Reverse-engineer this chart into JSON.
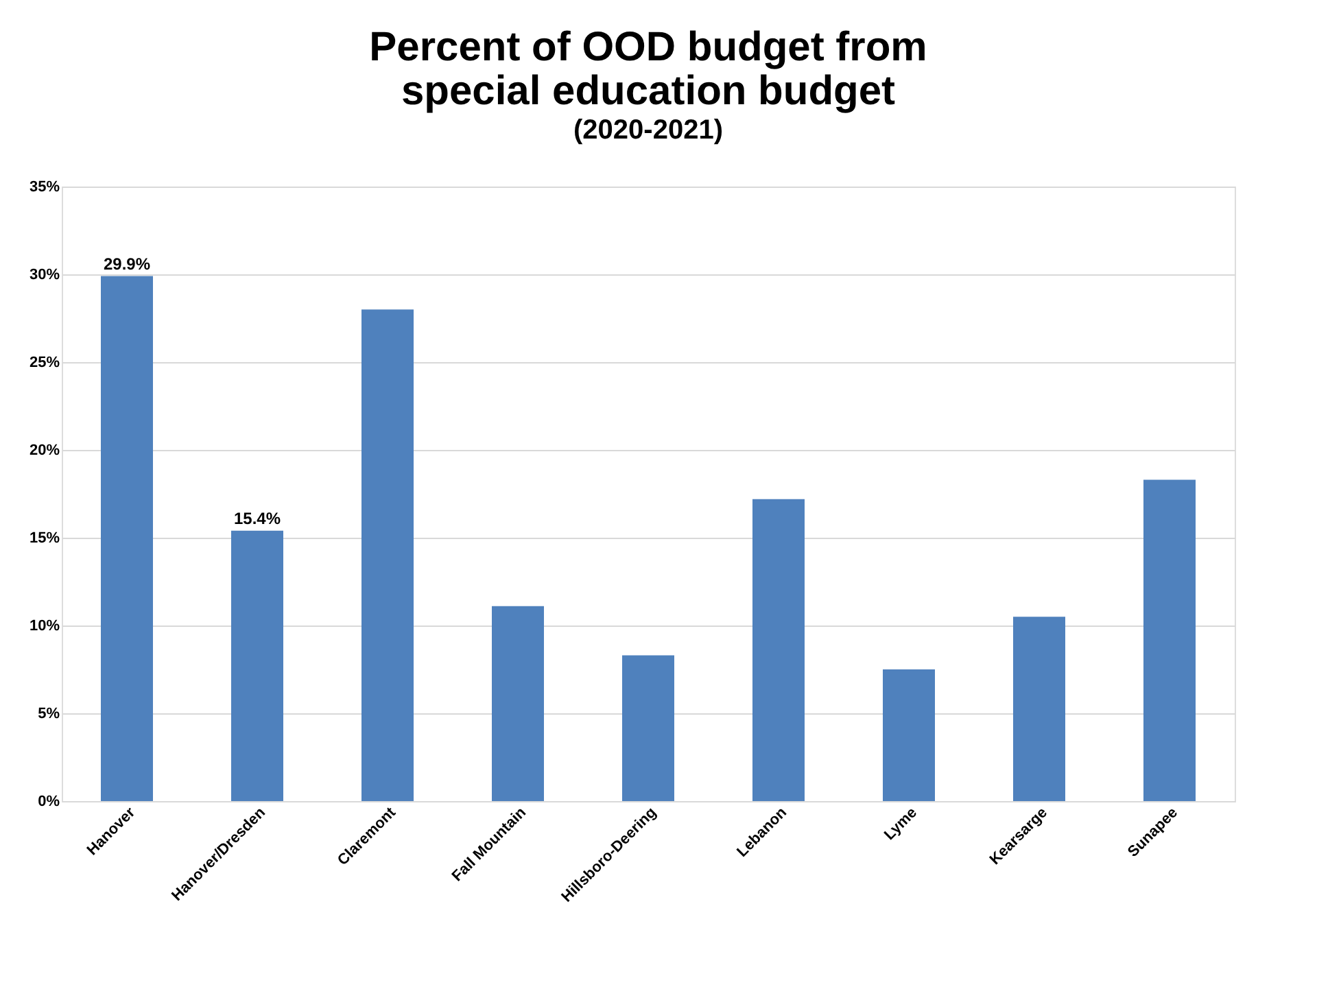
{
  "chart_data": {
    "type": "bar",
    "title": [
      "Percent of OOD budget from",
      "special education budget"
    ],
    "subtitle": "(2020-2021)",
    "categories": [
      "Hanover",
      "Hanover/Dresden",
      "Claremont",
      "Fall Mountain",
      "Hillsboro-Deering",
      "Lebanon",
      "Lyme",
      "Kearsarge",
      "Sunapee"
    ],
    "values": [
      29.9,
      15.4,
      28.0,
      11.1,
      8.3,
      17.2,
      7.5,
      10.5,
      18.3
    ],
    "value_labels": [
      "29.9%",
      "15.4%",
      null,
      null,
      null,
      null,
      null,
      null,
      null
    ],
    "color": "#4f81bd",
    "ylim": [
      0,
      35
    ],
    "yticks": [
      {
        "value": 0,
        "label": "0%"
      },
      {
        "value": 5,
        "label": "5%"
      },
      {
        "value": 10,
        "label": "10%"
      },
      {
        "value": 15,
        "label": "15%"
      },
      {
        "value": 20,
        "label": "20%"
      },
      {
        "value": 25,
        "label": "25%"
      },
      {
        "value": 30,
        "label": "30%"
      },
      {
        "value": 35,
        "label": "35%"
      }
    ],
    "grid": "y"
  }
}
